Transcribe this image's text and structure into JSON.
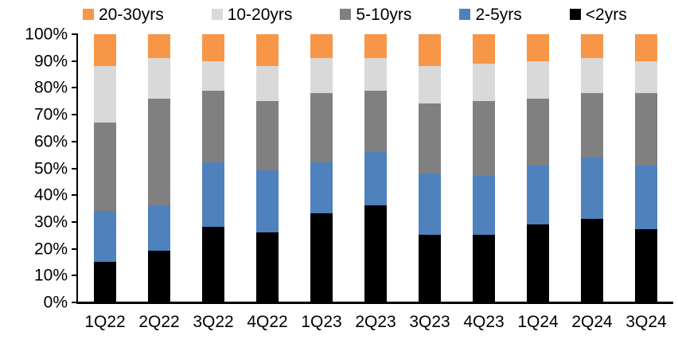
{
  "chart_data": {
    "type": "bar",
    "subtype": "stacked-100-percent",
    "title": "",
    "xlabel": "",
    "ylabel": "",
    "background": "#FFFFFF",
    "axis_color": "#000000",
    "grid": false,
    "categories": [
      "1Q22",
      "2Q22",
      "3Q22",
      "4Q22",
      "1Q23",
      "2Q23",
      "3Q23",
      "4Q23",
      "1Q24",
      "2Q24",
      "3Q24"
    ],
    "series": [
      {
        "key": "under-2yrs",
        "name": "<2yrs",
        "color": "#000000",
        "values": [
          15,
          19,
          28,
          26,
          33,
          36,
          25,
          25,
          29,
          31,
          27
        ]
      },
      {
        "key": "2-5yrs",
        "name": "2-5yrs",
        "color": "#4F81BD",
        "values": [
          19,
          17,
          24,
          23,
          19,
          20,
          23,
          22,
          22,
          23,
          24
        ]
      },
      {
        "key": "5-10yrs",
        "name": "5-10yrs",
        "color": "#808080",
        "values": [
          33,
          40,
          27,
          26,
          26,
          23,
          26,
          28,
          25,
          24,
          27
        ]
      },
      {
        "key": "10-20yrs",
        "name": "10-20yrs",
        "color": "#D9D9D9",
        "values": [
          21,
          15,
          11,
          13,
          13,
          12,
          14,
          14,
          14,
          13,
          12
        ]
      },
      {
        "key": "20-30yrs",
        "name": "20-30yrs",
        "color": "#F79646",
        "values": [
          12,
          9,
          10,
          12,
          9,
          9,
          12,
          11,
          10,
          9,
          10
        ]
      }
    ],
    "stack_order": "first series at bottom",
    "y_axis": {
      "min": 0,
      "max": 100,
      "tick_step": 10,
      "ticks": [
        "0%",
        "10%",
        "20%",
        "30%",
        "40%",
        "50%",
        "60%",
        "70%",
        "80%",
        "90%",
        "100%"
      ]
    },
    "legend": {
      "position": "top",
      "items": [
        {
          "key": "20-30yrs",
          "label": "20-30yrs",
          "color": "#F79646"
        },
        {
          "key": "10-20yrs",
          "label": "10-20yrs",
          "color": "#D9D9D9"
        },
        {
          "key": "5-10yrs",
          "label": "5-10yrs",
          "color": "#808080"
        },
        {
          "key": "2-5yrs",
          "label": "2-5yrs",
          "color": "#4F81BD"
        },
        {
          "key": "under-2yrs",
          "label": "<2yrs",
          "color": "#000000"
        }
      ]
    }
  }
}
